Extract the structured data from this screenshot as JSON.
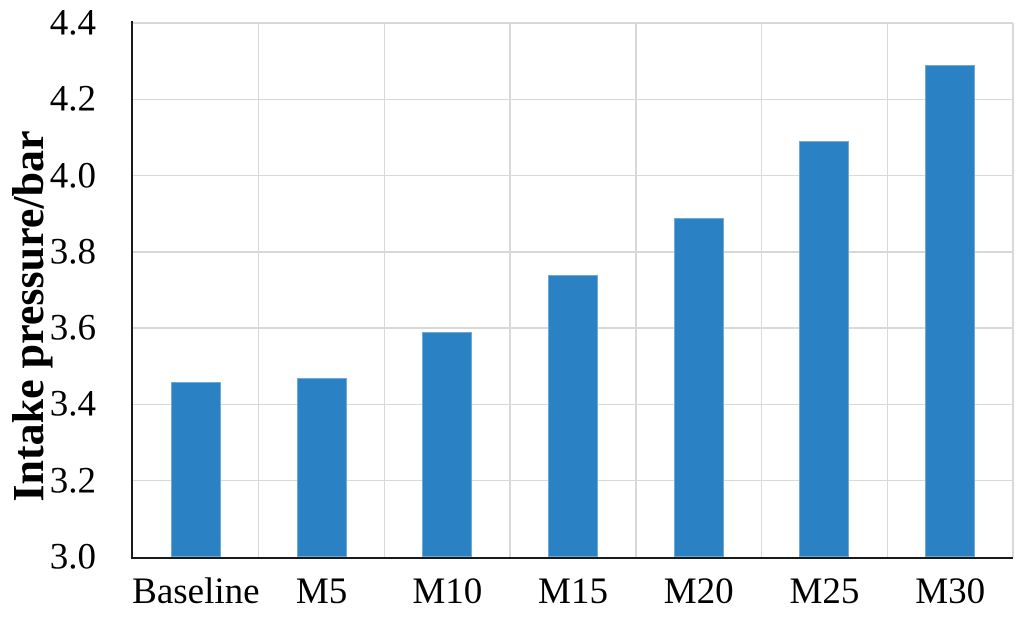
{
  "chart_data": {
    "type": "bar",
    "title": "",
    "categories": [
      "Baseline",
      "M5",
      "M10",
      "M15",
      "M20",
      "M25",
      "M30"
    ],
    "values": [
      3.46,
      3.47,
      3.59,
      3.74,
      3.89,
      4.09,
      4.29
    ],
    "xlabel": "",
    "ylabel": "Intake pressure/bar",
    "ylim": [
      3.0,
      4.4
    ],
    "ytick_step": 0.2,
    "ytick_labels": [
      "3.0",
      "3.2",
      "3.4",
      "3.6",
      "3.8",
      "4.0",
      "4.2",
      "4.4"
    ],
    "grid": true,
    "legend": "none",
    "colors": {
      "bar_fill": "#2a82c4",
      "bar_border": "#72a9d3",
      "gridline": "#d8d8d8",
      "axis": "#1a1a1a",
      "text": "#000000",
      "background": "#ffffff"
    }
  }
}
